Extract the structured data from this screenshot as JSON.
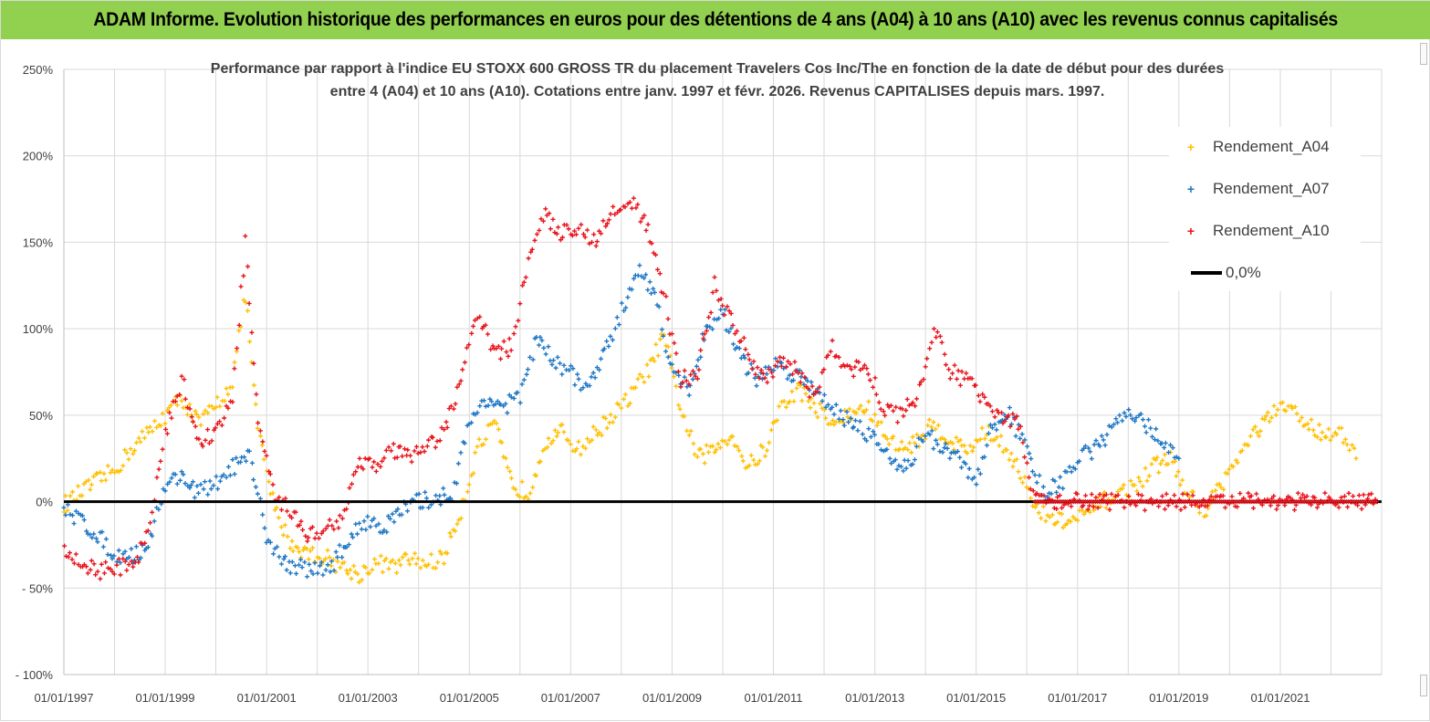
{
  "banner": {
    "text": "ADAM Informe. Evolution historique des performances en euros pour des détentions de 4 ans (A04) à 10 ans (A10) avec les revenus connus capitalisés",
    "color": "#92d050"
  },
  "chart_data": {
    "type": "scatter",
    "title_lines": [
      "Performance par rapport à l'indice EU STOXX 600 GROSS TR  du placement Travelers Cos Inc/The en fonction de la date de début pour des durées",
      "entre 4 (A04) et 10 ans (A10). Cotations entre janv. 1997 et févr. 2026. Revenus CAPITALISES depuis mars. 1997."
    ],
    "xlabel": "",
    "ylabel": "",
    "x_range": [
      "1997-01-01",
      "2023-01-01"
    ],
    "ylim": [
      -100,
      250
    ],
    "y_ticks": [
      -100,
      -50,
      0,
      50,
      100,
      150,
      200,
      250
    ],
    "y_tick_labels": [
      "- 100%",
      "- 50%",
      "0%",
      "50%",
      "100%",
      "150%",
      "200%",
      "250%"
    ],
    "x_tick_labels": [
      "01/01/1997",
      "01/01/1999",
      "01/01/2001",
      "01/01/2003",
      "01/01/2005",
      "01/01/2007",
      "01/01/2009",
      "01/01/2011",
      "01/01/2013",
      "01/01/2015",
      "01/01/2017",
      "01/01/2019",
      "01/01/2021"
    ],
    "grid": true,
    "legend_position": "top-right",
    "series": [
      {
        "name": "Rendement_A04",
        "color": "#ffc000",
        "marker": "+",
        "points": [
          [
            "1997-01-01",
            -2
          ],
          [
            "1997-05-01",
            5
          ],
          [
            "1997-09-01",
            12
          ],
          [
            "1998-01-01",
            18
          ],
          [
            "1998-05-01",
            30
          ],
          [
            "1998-09-01",
            40
          ],
          [
            "1999-01-01",
            50
          ],
          [
            "1999-05-01",
            60
          ],
          [
            "1999-09-01",
            45
          ],
          [
            "2000-01-01",
            55
          ],
          [
            "2000-05-01",
            70
          ],
          [
            "2000-08-01",
            120
          ],
          [
            "2000-11-01",
            40
          ],
          [
            "2001-03-01",
            -5
          ],
          [
            "2001-07-01",
            -25
          ],
          [
            "2001-11-01",
            -30
          ],
          [
            "2002-03-01",
            -32
          ],
          [
            "2002-07-01",
            -38
          ],
          [
            "2002-11-01",
            -42
          ],
          [
            "2003-03-01",
            -35
          ],
          [
            "2003-07-01",
            -38
          ],
          [
            "2003-11-01",
            -33
          ],
          [
            "2004-03-01",
            -36
          ],
          [
            "2004-07-01",
            -32
          ],
          [
            "2004-11-01",
            -5
          ],
          [
            "2005-03-01",
            30
          ],
          [
            "2005-07-01",
            45
          ],
          [
            "2005-11-01",
            10
          ],
          [
            "2006-03-01",
            5
          ],
          [
            "2006-07-01",
            35
          ],
          [
            "2006-11-01",
            40
          ],
          [
            "2007-03-01",
            30
          ],
          [
            "2007-07-01",
            40
          ],
          [
            "2007-11-01",
            50
          ],
          [
            "2008-03-01",
            60
          ],
          [
            "2008-07-01",
            75
          ],
          [
            "2008-11-01",
            95
          ],
          [
            "2009-03-01",
            55
          ],
          [
            "2009-07-01",
            25
          ],
          [
            "2009-11-01",
            30
          ],
          [
            "2010-03-01",
            40
          ],
          [
            "2010-07-01",
            20
          ],
          [
            "2010-11-01",
            30
          ],
          [
            "2011-03-01",
            55
          ],
          [
            "2011-07-01",
            65
          ],
          [
            "2011-11-01",
            55
          ],
          [
            "2012-03-01",
            45
          ],
          [
            "2012-07-01",
            50
          ],
          [
            "2012-11-01",
            55
          ],
          [
            "2013-03-01",
            40
          ],
          [
            "2013-07-01",
            30
          ],
          [
            "2013-11-01",
            35
          ],
          [
            "2014-03-01",
            45
          ],
          [
            "2014-07-01",
            35
          ],
          [
            "2014-11-01",
            30
          ],
          [
            "2015-03-01",
            40
          ],
          [
            "2015-07-01",
            35
          ],
          [
            "2015-11-01",
            20
          ],
          [
            "2016-03-01",
            -5
          ],
          [
            "2016-07-01",
            -10
          ],
          [
            "2016-11-01",
            -12
          ],
          [
            "2017-03-01",
            -8
          ],
          [
            "2017-07-01",
            0
          ],
          [
            "2017-11-01",
            5
          ],
          [
            "2018-03-01",
            10
          ],
          [
            "2018-07-01",
            20
          ],
          [
            "2018-11-01",
            25
          ],
          [
            "2019-03-01",
            5
          ],
          [
            "2019-07-01",
            -5
          ],
          [
            "2019-11-01",
            10
          ],
          [
            "2020-03-01",
            25
          ],
          [
            "2020-07-01",
            40
          ],
          [
            "2020-11-01",
            50
          ],
          [
            "2021-03-01",
            55
          ],
          [
            "2021-07-01",
            45
          ],
          [
            "2021-11-01",
            40
          ],
          [
            "2022-03-01",
            40
          ],
          [
            "2022-07-01",
            25
          ]
        ]
      },
      {
        "name": "Rendement_A07",
        "color": "#1f77c4",
        "marker": "+",
        "points": [
          [
            "1997-01-01",
            -5
          ],
          [
            "1997-05-01",
            -10
          ],
          [
            "1997-09-01",
            -20
          ],
          [
            "1998-01-01",
            -30
          ],
          [
            "1998-05-01",
            -32
          ],
          [
            "1998-09-01",
            -25
          ],
          [
            "1999-01-01",
            10
          ],
          [
            "1999-05-01",
            15
          ],
          [
            "1999-09-01",
            5
          ],
          [
            "2000-01-01",
            10
          ],
          [
            "2000-05-01",
            20
          ],
          [
            "2000-09-01",
            25
          ],
          [
            "2001-01-01",
            -20
          ],
          [
            "2001-05-01",
            -35
          ],
          [
            "2001-09-01",
            -38
          ],
          [
            "2002-01-01",
            -40
          ],
          [
            "2002-05-01",
            -35
          ],
          [
            "2002-09-01",
            -20
          ],
          [
            "2003-01-01",
            -10
          ],
          [
            "2003-05-01",
            -15
          ],
          [
            "2003-09-01",
            -5
          ],
          [
            "2004-01-01",
            0
          ],
          [
            "2004-05-01",
            2
          ],
          [
            "2004-09-01",
            5
          ],
          [
            "2005-01-01",
            45
          ],
          [
            "2005-05-01",
            60
          ],
          [
            "2005-09-01",
            55
          ],
          [
            "2006-01-01",
            60
          ],
          [
            "2006-05-01",
            95
          ],
          [
            "2006-09-01",
            80
          ],
          [
            "2007-01-01",
            75
          ],
          [
            "2007-05-01",
            65
          ],
          [
            "2007-09-01",
            85
          ],
          [
            "2008-01-01",
            110
          ],
          [
            "2008-05-01",
            135
          ],
          [
            "2008-09-01",
            120
          ],
          [
            "2009-01-01",
            75
          ],
          [
            "2009-05-01",
            65
          ],
          [
            "2009-09-01",
            100
          ],
          [
            "2010-01-01",
            110
          ],
          [
            "2010-05-01",
            85
          ],
          [
            "2010-09-01",
            70
          ],
          [
            "2011-01-01",
            80
          ],
          [
            "2011-05-01",
            75
          ],
          [
            "2011-09-01",
            70
          ],
          [
            "2012-01-01",
            60
          ],
          [
            "2012-05-01",
            50
          ],
          [
            "2012-09-01",
            45
          ],
          [
            "2013-01-01",
            35
          ],
          [
            "2013-05-01",
            25
          ],
          [
            "2013-09-01",
            20
          ],
          [
            "2014-01-01",
            40
          ],
          [
            "2014-05-01",
            30
          ],
          [
            "2014-09-01",
            25
          ],
          [
            "2015-01-01",
            10
          ],
          [
            "2015-05-01",
            45
          ],
          [
            "2015-09-01",
            50
          ],
          [
            "2016-01-01",
            30
          ],
          [
            "2016-05-01",
            5
          ],
          [
            "2016-09-01",
            10
          ],
          [
            "2017-01-01",
            25
          ],
          [
            "2017-05-01",
            30
          ],
          [
            "2017-09-01",
            40
          ],
          [
            "2018-01-01",
            55
          ],
          [
            "2018-05-01",
            45
          ],
          [
            "2018-09-01",
            35
          ],
          [
            "2019-01-01",
            25
          ]
        ]
      },
      {
        "name": "Rendement_A10",
        "color": "#e8141c",
        "marker": "+",
        "points": [
          [
            "1997-01-01",
            -30
          ],
          [
            "1997-05-01",
            -35
          ],
          [
            "1997-09-01",
            -40
          ],
          [
            "1998-01-01",
            -38
          ],
          [
            "1998-05-01",
            -38
          ],
          [
            "1998-09-01",
            -20
          ],
          [
            "1999-01-01",
            40
          ],
          [
            "1999-05-01",
            70
          ],
          [
            "1999-09-01",
            35
          ],
          [
            "2000-01-01",
            40
          ],
          [
            "2000-05-01",
            60
          ],
          [
            "2000-08-01",
            150
          ],
          [
            "2000-11-01",
            45
          ],
          [
            "2001-03-01",
            0
          ],
          [
            "2001-07-01",
            -5
          ],
          [
            "2001-11-01",
            -20
          ],
          [
            "2002-03-01",
            -15
          ],
          [
            "2002-07-01",
            -10
          ],
          [
            "2002-11-01",
            25
          ],
          [
            "2003-03-01",
            20
          ],
          [
            "2003-07-01",
            30
          ],
          [
            "2003-11-01",
            25
          ],
          [
            "2004-03-01",
            30
          ],
          [
            "2004-07-01",
            40
          ],
          [
            "2004-11-01",
            70
          ],
          [
            "2005-03-01",
            110
          ],
          [
            "2005-07-01",
            85
          ],
          [
            "2005-11-01",
            90
          ],
          [
            "2006-03-01",
            140
          ],
          [
            "2006-07-01",
            165
          ],
          [
            "2006-11-01",
            155
          ],
          [
            "2007-03-01",
            160
          ],
          [
            "2007-07-01",
            150
          ],
          [
            "2007-11-01",
            170
          ],
          [
            "2008-03-01",
            175
          ],
          [
            "2008-07-01",
            160
          ],
          [
            "2008-11-01",
            120
          ],
          [
            "2009-03-01",
            70
          ],
          [
            "2009-07-01",
            75
          ],
          [
            "2009-11-01",
            125
          ],
          [
            "2010-03-01",
            105
          ],
          [
            "2010-07-01",
            85
          ],
          [
            "2010-11-01",
            70
          ],
          [
            "2011-03-01",
            80
          ],
          [
            "2011-07-01",
            75
          ],
          [
            "2011-11-01",
            60
          ],
          [
            "2012-03-01",
            90
          ],
          [
            "2012-07-01",
            75
          ],
          [
            "2012-11-01",
            80
          ],
          [
            "2013-03-01",
            55
          ],
          [
            "2013-07-01",
            50
          ],
          [
            "2013-11-01",
            60
          ],
          [
            "2014-03-01",
            100
          ],
          [
            "2014-07-01",
            75
          ],
          [
            "2014-11-01",
            70
          ],
          [
            "2015-03-01",
            60
          ],
          [
            "2015-07-01",
            50
          ],
          [
            "2015-11-01",
            45
          ],
          [
            "2016-03-01",
            0
          ],
          [
            "2016-07-01",
            0
          ],
          [
            "2017-01-01",
            0
          ],
          [
            "2018-01-01",
            0
          ],
          [
            "2019-01-01",
            0
          ],
          [
            "2020-01-01",
            0
          ],
          [
            "2021-01-01",
            0
          ],
          [
            "2022-01-01",
            0
          ],
          [
            "2022-12-01",
            0
          ]
        ]
      },
      {
        "name": "0,0%",
        "color": "#000000",
        "marker": "line",
        "points": [
          [
            "1997-01-01",
            0
          ],
          [
            "2022-12-31",
            0
          ]
        ]
      }
    ]
  }
}
